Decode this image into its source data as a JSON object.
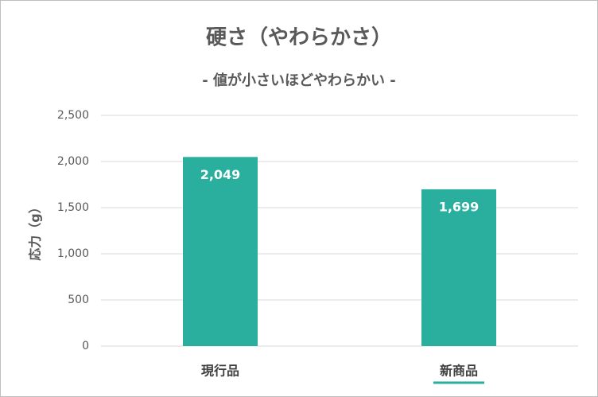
{
  "chart_data": {
    "type": "bar",
    "title": "硬さ（やわらかさ）",
    "subtitle": "- 値が小さいほどやわらかい -",
    "y_label": "応力（g）",
    "categories": [
      "現行品",
      "新商品"
    ],
    "values": [
      2049,
      1699
    ],
    "value_labels": [
      "2,049",
      "1,699"
    ],
    "color": "#2aae9e",
    "ylim": [
      0,
      2500
    ],
    "yticks": [
      0,
      500,
      {
        "value": 1000,
        "label": "1,000"
      },
      {
        "value": 1500,
        "label": "1,500"
      },
      {
        "value": 2000,
        "label": "2,000"
      },
      {
        "value": 2500,
        "label": "2,500"
      }
    ],
    "grid": true
  }
}
